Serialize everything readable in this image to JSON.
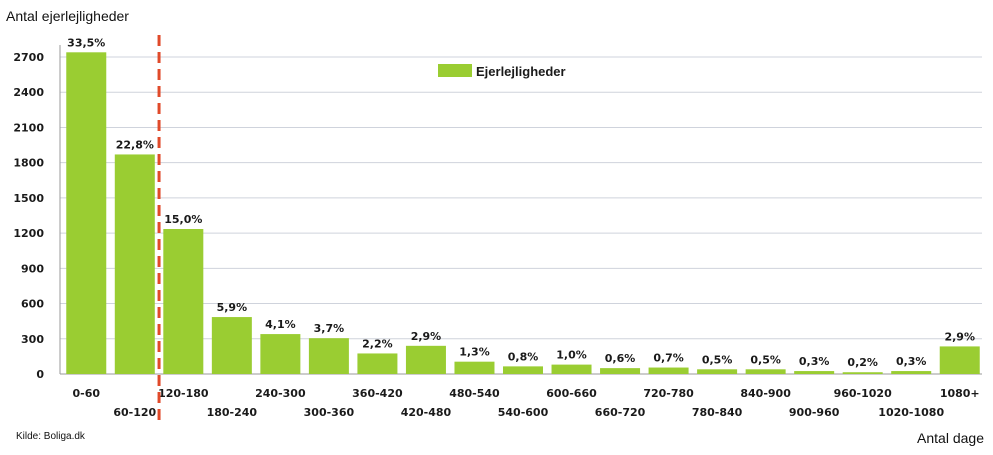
{
  "source_label": "Kilde: Boliga.dk",
  "chart_data": {
    "type": "bar",
    "title": "",
    "ylabel": "Antal ejerlejligheder",
    "xlabel": "Antal dage",
    "ylim": [
      0,
      2700
    ],
    "yticks": [
      0,
      300,
      600,
      900,
      1200,
      1500,
      1800,
      2100,
      2400,
      2700
    ],
    "grid": true,
    "legend": "top-center",
    "bar_color": "#9acd32",
    "marker_line_color": "#e04a2a",
    "marker_after_category": "60-120",
    "categories": [
      "0-60",
      "60-120",
      "120-180",
      "180-240",
      "240-300",
      "300-360",
      "360-420",
      "420-480",
      "480-540",
      "540-600",
      "600-660",
      "660-720",
      "720-780",
      "780-840",
      "840-900",
      "900-960",
      "960-1020",
      "1020-1080",
      "1080+"
    ],
    "series": [
      {
        "name": "Ejerlejligheder",
        "values": [
          2740,
          1870,
          1235,
          485,
          340,
          305,
          175,
          240,
          105,
          65,
          80,
          50,
          55,
          40,
          40,
          25,
          15,
          25,
          235
        ],
        "labels": [
          "33,5%",
          "22,8%",
          "15,0%",
          "5,9%",
          "4,1%",
          "3,7%",
          "2,2%",
          "2,9%",
          "1,3%",
          "0,8%",
          "1,0%",
          "0,6%",
          "0,7%",
          "0,5%",
          "0,5%",
          "0,3%",
          "0,2%",
          "0,3%",
          "2,9%"
        ]
      }
    ]
  }
}
